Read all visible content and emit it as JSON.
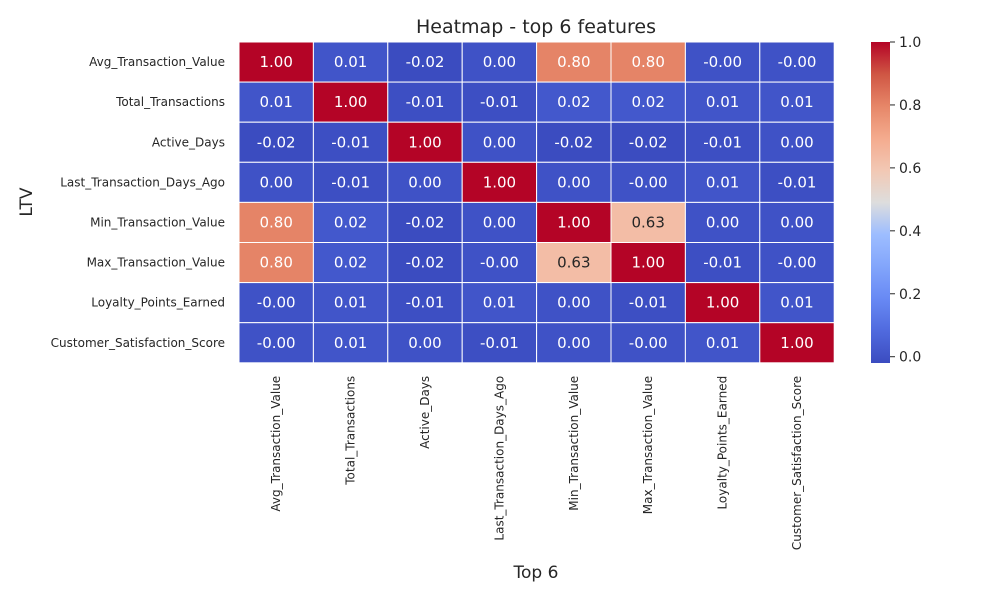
{
  "chart_data": {
    "type": "heatmap",
    "title": "Heatmap - top 6 features",
    "xlabel": "Top 6",
    "ylabel": "LTV",
    "rows": [
      "Avg_Transaction_Value",
      "Total_Transactions",
      "Active_Days",
      "Last_Transaction_Days_Ago",
      "Min_Transaction_Value",
      "Max_Transaction_Value",
      "Loyalty_Points_Earned",
      "Customer_Satisfaction_Score"
    ],
    "columns": [
      "Avg_Transaction_Value",
      "Total_Transactions",
      "Active_Days",
      "Last_Transaction_Days_Ago",
      "Min_Transaction_Value",
      "Max_Transaction_Value",
      "Loyalty_Points_Earned",
      "Customer_Satisfaction_Score"
    ],
    "values": [
      [
        1.0,
        0.01,
        -0.02,
        0.0,
        0.8,
        0.8,
        -0.0,
        -0.0
      ],
      [
        0.01,
        1.0,
        -0.01,
        -0.01,
        0.02,
        0.02,
        0.01,
        0.01
      ],
      [
        -0.02,
        -0.01,
        1.0,
        0.0,
        -0.02,
        -0.02,
        -0.01,
        0.0
      ],
      [
        0.0,
        -0.01,
        0.0,
        1.0,
        0.0,
        -0.0,
        0.01,
        -0.01
      ],
      [
        0.8,
        0.02,
        -0.02,
        0.0,
        1.0,
        0.63,
        0.0,
        0.0
      ],
      [
        0.8,
        0.02,
        -0.02,
        -0.0,
        0.63,
        1.0,
        -0.01,
        -0.0
      ],
      [
        -0.0,
        0.01,
        -0.01,
        0.01,
        0.0,
        -0.01,
        1.0,
        0.01
      ],
      [
        -0.0,
        0.01,
        0.0,
        -0.01,
        0.0,
        -0.0,
        0.01,
        1.0
      ]
    ],
    "cell_labels": [
      [
        "1.00",
        "0.01",
        "-0.02",
        "0.00",
        "0.80",
        "0.80",
        "-0.00",
        "-0.00"
      ],
      [
        "0.01",
        "1.00",
        "-0.01",
        "-0.01",
        "0.02",
        "0.02",
        "0.01",
        "0.01"
      ],
      [
        "-0.02",
        "-0.01",
        "1.00",
        "0.00",
        "-0.02",
        "-0.02",
        "-0.01",
        "0.00"
      ],
      [
        "0.00",
        "-0.01",
        "0.00",
        "1.00",
        "0.00",
        "-0.00",
        "0.01",
        "-0.01"
      ],
      [
        "0.80",
        "0.02",
        "-0.02",
        "0.00",
        "1.00",
        "0.63",
        "0.00",
        "0.00"
      ],
      [
        "0.80",
        "0.02",
        "-0.02",
        "-0.00",
        "0.63",
        "1.00",
        "-0.01",
        "-0.00"
      ],
      [
        "-0.00",
        "0.01",
        "-0.01",
        "0.01",
        "0.00",
        "-0.01",
        "1.00",
        "0.01"
      ],
      [
        "-0.00",
        "0.01",
        "0.00",
        "-0.01",
        "0.00",
        "-0.00",
        "0.01",
        "1.00"
      ]
    ],
    "colormap": "coolwarm",
    "color_range": [
      -0.02,
      1.0
    ],
    "colorbar_ticks": [
      {
        "value": 1.0,
        "label": "1.0"
      },
      {
        "value": 0.8,
        "label": "0.8"
      },
      {
        "value": 0.6,
        "label": "0.6"
      },
      {
        "value": 0.4,
        "label": "0.4"
      },
      {
        "value": 0.2,
        "label": "0.2"
      },
      {
        "value": 0.0,
        "label": "0.0"
      }
    ],
    "colors": {
      "low": "#3b4cc0",
      "mid": "#dddddd",
      "high": "#b40426",
      "grid_lines": "#ffffff"
    }
  }
}
